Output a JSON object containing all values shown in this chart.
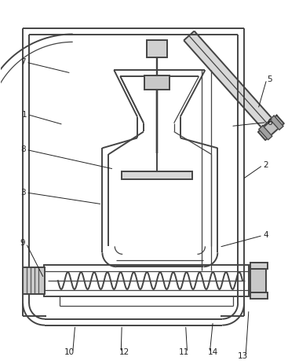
{
  "bg_color": "#ffffff",
  "line_color": "#444444",
  "line_width": 1.4,
  "thin_line": 0.9,
  "figsize": [
    3.67,
    4.63
  ],
  "dpi": 100
}
